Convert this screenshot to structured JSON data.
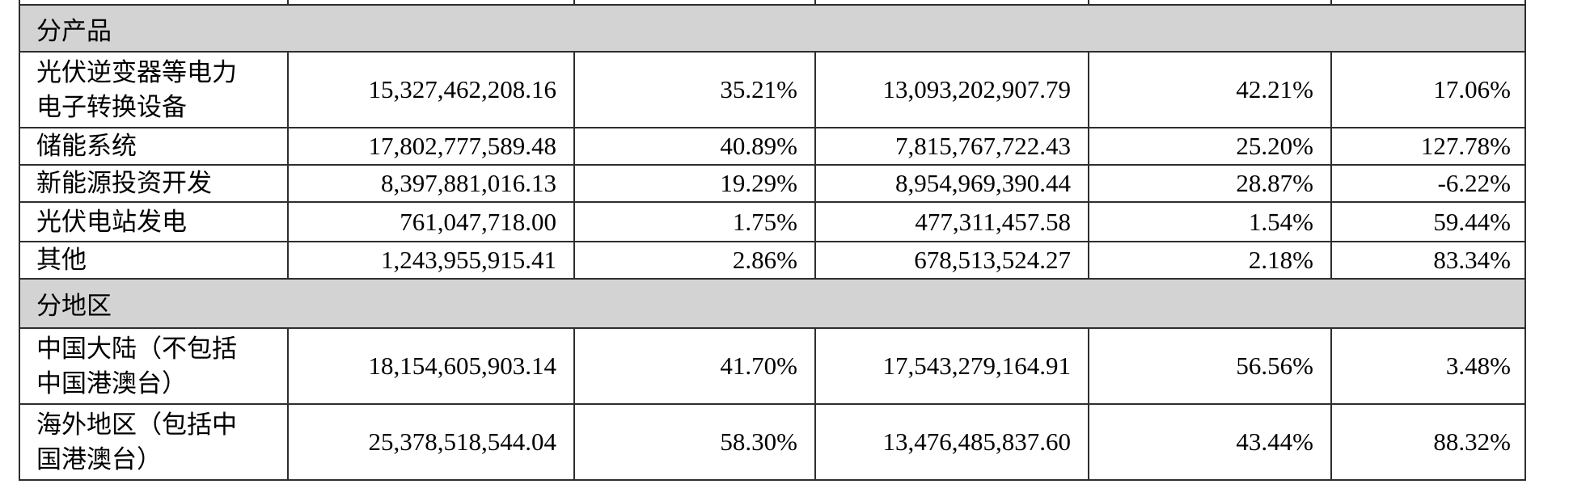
{
  "table": {
    "section_bg": "#d3d3d3",
    "border_color": "#2e2e2e",
    "sections": [
      {
        "title": "分产品",
        "rows": [
          {
            "label": "光伏逆变器等电力\n电子转换设备",
            "values": [
              "15,327,462,208.16",
              "35.21%",
              "13,093,202,907.79",
              "42.21%",
              "17.06%"
            ]
          },
          {
            "label": "储能系统",
            "values": [
              "17,802,777,589.48",
              "40.89%",
              "7,815,767,722.43",
              "25.20%",
              "127.78%"
            ]
          },
          {
            "label": "新能源投资开发",
            "values": [
              "8,397,881,016.13",
              "19.29%",
              "8,954,969,390.44",
              "28.87%",
              "-6.22%"
            ]
          },
          {
            "label": "光伏电站发电",
            "values": [
              "761,047,718.00",
              "1.75%",
              "477,311,457.58",
              "1.54%",
              "59.44%"
            ]
          },
          {
            "label": "其他",
            "values": [
              "1,243,955,915.41",
              "2.86%",
              "678,513,524.27",
              "2.18%",
              "83.34%"
            ]
          }
        ]
      },
      {
        "title": "分地区",
        "rows": [
          {
            "label": "中国大陆（不包括\n中国港澳台）",
            "values": [
              "18,154,605,903.14",
              "41.70%",
              "17,543,279,164.91",
              "56.56%",
              "3.48%"
            ]
          },
          {
            "label": "海外地区（包括中\n国港澳台）",
            "values": [
              "25,378,518,544.04",
              "58.30%",
              "13,476,485,837.60",
              "43.44%",
              "88.32%"
            ]
          }
        ]
      }
    ]
  }
}
